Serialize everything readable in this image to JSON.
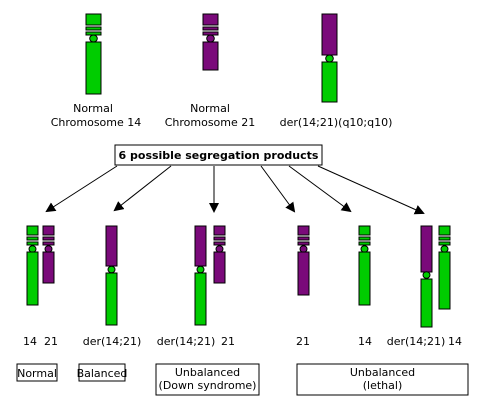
{
  "colors": {
    "chr14": "#00cc00",
    "chr21": "#7a0a7a",
    "outline": "#000000"
  },
  "top_labels": {
    "normal14": [
      "Normal",
      "Chromosome 14"
    ],
    "normal21": [
      "Normal",
      "Chromosome 21"
    ],
    "der": "der(14;21)(q10;q10)"
  },
  "center_box": "6 possible segregation products",
  "products": {
    "p1_14": "14",
    "p1_21": "21",
    "p2_der": "der(14;21)",
    "p3_der": "der(14;21)",
    "p3_21": "21",
    "p4_21": "21",
    "p5_14": "14",
    "p6_der": "der(14;21)",
    "p6_14": "14"
  },
  "categories": {
    "normal": "Normal",
    "balanced": "Balanced",
    "down": [
      "Unbalanced",
      "(Down syndrome)"
    ],
    "lethal": [
      "Unbalanced",
      "(lethal)"
    ]
  }
}
